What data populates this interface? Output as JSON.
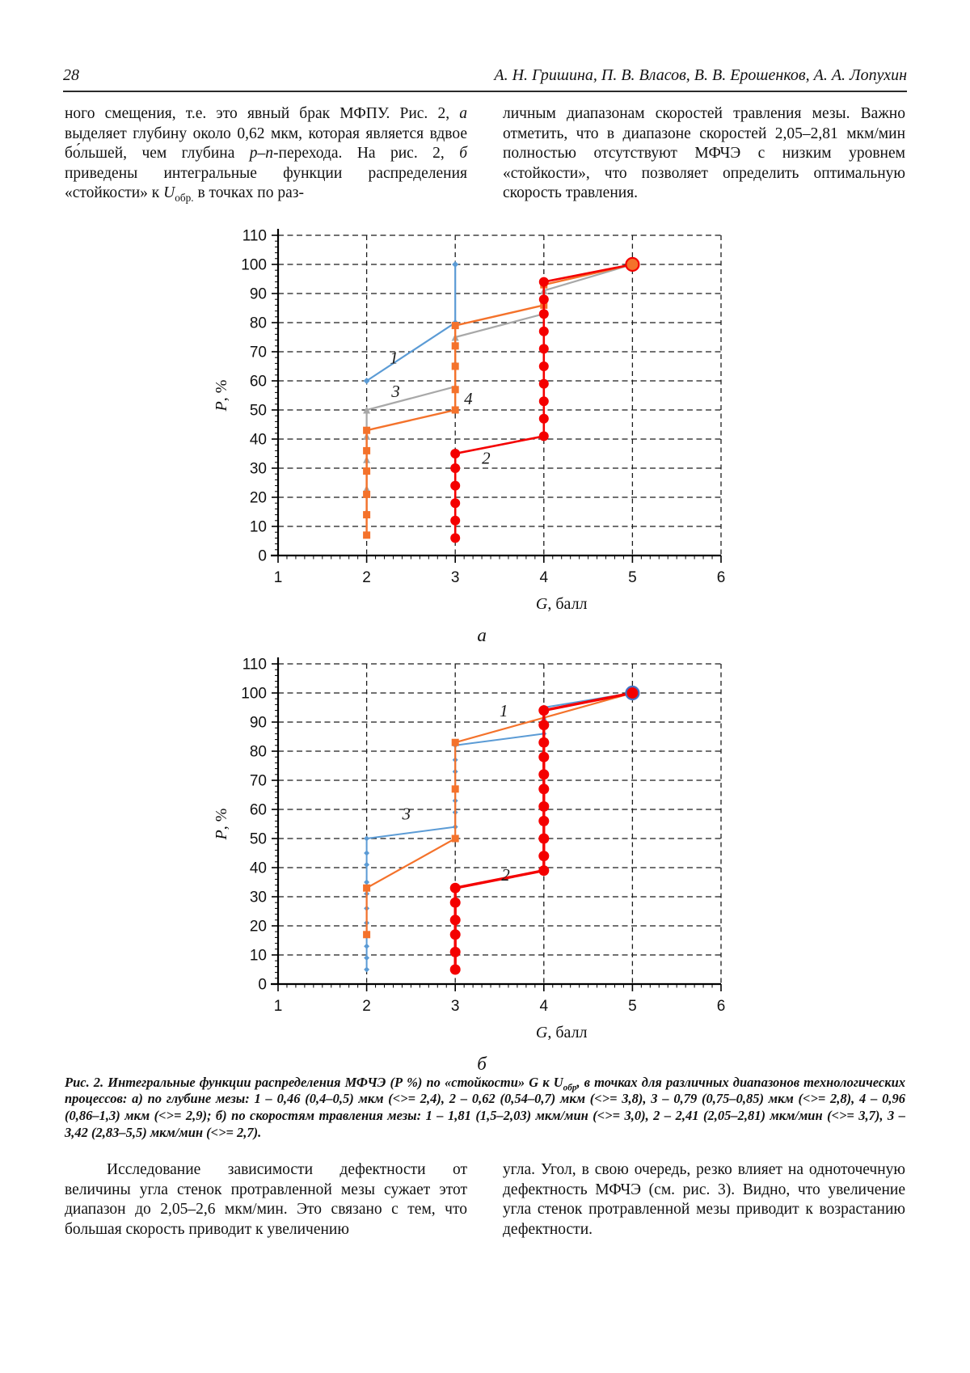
{
  "page": {
    "number": "28",
    "authors": "А. Н. Гришина, П. В. Власов, В. В. Ерошенков, А. А. Лопухин"
  },
  "paragraphs": {
    "top_left": [
      {
        "t": "ного смещения, т.е. это явный брак МФПУ. Рис. 2, "
      },
      {
        "t": "а",
        "s": "i"
      },
      {
        "t": " выделяет глубину около 0,62 мкм, которая является вдвое бо́льшей, чем глубина "
      },
      {
        "t": "p–n",
        "s": "i"
      },
      {
        "t": "-перехода. На рис. 2, "
      },
      {
        "t": "б",
        "s": "i"
      },
      {
        "t": " приведены интегральные функции распределения «стойкости» к "
      },
      {
        "t": "U",
        "s": "i"
      },
      {
        "t": "обр.",
        "s": "sub"
      },
      {
        "t": " в точках по раз-"
      }
    ],
    "top_right": [
      {
        "t": "личным диапазонам скоростей травления мезы. Важно отметить, что в диапазоне скоростей 2,05–2,81 мкм/мин полностью отсутствуют МФЧЭ с низким уровнем «стойкости», что позволяет определить оптимальную скорость травления."
      }
    ],
    "bottom_left": [
      {
        "t": "Исследование зависимости дефектности от величины угла стенок протравленной мезы сужает этот диапазон до 2,05–2,6 мкм/мин. Это связано с тем, что большая скорость приводит к увеличению"
      }
    ],
    "bottom_right": [
      {
        "t": "угла. Угол, в свою очередь, резко влияет на одноточечную дефектность МФЧЭ (см. рис. 3). Видно, что увеличение угла стенок протравленной мезы приводит к возрастанию дефектности."
      }
    ]
  },
  "caption": [
    {
      "t": "Рис. 2. Интегральные функции распределения МФЧЭ (Р %) по «стойкости» G к U"
    },
    {
      "t": "обр",
      "s": "sub"
    },
    {
      "t": ", в точках для различных диапазонов технологических процессов: а) по глубине мезы: 1 – 0,46 (0,4–0,5) мкм (<>= 2,4), 2 – 0,62 (0,54–0,7) мкм (<>= 3,8), 3 – 0,79 (0,75–0,85) мкм (<>= 2,8), 4 – 0,96 (0,86–1,3) мкм (<>= 2,9); б) по скоростям травления мезы: 1 – 1,81 (1,5–2,03) мкм/мин (<>= 3,0), 2 – 2,41 (2,05–2,81) мкм/мин (<>= 3,7), 3 – 3,42 (2,83–5,5) мкм/мин (<>= 2,7)."
    }
  ],
  "chart_data": [
    {
      "type": "line",
      "panel_label": "а",
      "xlabel": "G, балл",
      "ylabel": "P, %",
      "xlim": [
        1,
        6
      ],
      "ylim": [
        0,
        110
      ],
      "xticks": [
        1,
        2,
        3,
        4,
        5,
        6
      ],
      "ytick_step": 10,
      "grid": "dashed",
      "series": [
        {
          "name": "1",
          "color": "#5B9BD5",
          "marker": "diamond",
          "marker_size": 8,
          "line_width": 2.2,
          "label_at": [
            2.26,
            66
          ],
          "points": [
            [
              2,
              60
            ],
            [
              3,
              80
            ],
            [
              3,
              100
            ]
          ]
        },
        {
          "name": "3",
          "color": "#A8A8A8",
          "marker": "triangle",
          "marker_size": 9,
          "line_width": 2.2,
          "label_at": [
            2.28,
            54.5
          ],
          "points": [
            [
              2,
              15
            ],
            [
              2,
              23
            ],
            [
              2,
              33
            ],
            [
              2,
              41
            ],
            [
              2,
              50
            ],
            [
              3,
              58
            ],
            [
              3,
              66
            ],
            [
              3,
              75
            ],
            [
              4,
              83
            ],
            [
              4,
              91
            ],
            [
              5,
              100
            ]
          ]
        },
        {
          "name": "4",
          "color": "#F4722B",
          "marker": "square",
          "marker_size": 9,
          "line_width": 2.4,
          "label_at": [
            3.1,
            52
          ],
          "points": [
            [
              2,
              7
            ],
            [
              2,
              14
            ],
            [
              2,
              21
            ],
            [
              2,
              29
            ],
            [
              2,
              36
            ],
            [
              2,
              43
            ],
            [
              3,
              50
            ],
            [
              3,
              57
            ],
            [
              3,
              65
            ],
            [
              3,
              72
            ],
            [
              3,
              79
            ],
            [
              4,
              86
            ],
            [
              4,
              93
            ],
            [
              5,
              100
            ]
          ]
        },
        {
          "name": "2",
          "color": "#F40000",
          "marker": "circle",
          "marker_size": 12,
          "line_width": 2.6,
          "label_at": [
            3.3,
            31.5
          ],
          "points": [
            [
              3,
              6
            ],
            [
              3,
              12
            ],
            [
              3,
              18
            ],
            [
              3,
              24
            ],
            [
              3,
              30
            ],
            [
              3,
              35
            ],
            [
              4,
              41
            ],
            [
              4,
              47
            ],
            [
              4,
              53
            ],
            [
              4,
              59
            ],
            [
              4,
              65
            ],
            [
              4,
              71
            ],
            [
              4,
              77
            ],
            [
              4,
              83
            ],
            [
              4,
              88
            ],
            [
              4,
              94
            ],
            [
              5,
              100
            ]
          ]
        }
      ],
      "endpoint": {
        "x": 5,
        "y": 100,
        "r": 8,
        "fill": "#F4722B",
        "stroke": "#F40000"
      }
    },
    {
      "type": "line",
      "panel_label": "б",
      "xlabel": "G, балл",
      "ylabel": "P, %",
      "xlim": [
        1,
        6
      ],
      "ylim": [
        0,
        110
      ],
      "xticks": [
        1,
        2,
        3,
        4,
        5,
        6
      ],
      "ytick_step": 10,
      "grid": "dashed",
      "series": [
        {
          "name": "3",
          "color": "#5B9BD5",
          "marker": "diamond",
          "marker_size": 7,
          "line_width": 2,
          "label_at": [
            2.4,
            56.5
          ],
          "points": [
            [
              2,
              5
            ],
            [
              2,
              9
            ],
            [
              2,
              13
            ],
            [
              2,
              17
            ],
            [
              2,
              21
            ],
            [
              2,
              26
            ],
            [
              2,
              31
            ],
            [
              2,
              35
            ],
            [
              2,
              41
            ],
            [
              2,
              45
            ],
            [
              2,
              50
            ],
            [
              3,
              54
            ],
            [
              3,
              59
            ],
            [
              3,
              63
            ],
            [
              3,
              67
            ],
            [
              3,
              73
            ],
            [
              3,
              77
            ],
            [
              3,
              82
            ],
            [
              4,
              86
            ],
            [
              4,
              91
            ],
            [
              4,
              95
            ],
            [
              5,
              100
            ]
          ]
        },
        {
          "name": "1",
          "color": "#F4722B",
          "marker": "square",
          "marker_size": 9,
          "line_width": 2.2,
          "label_at": [
            3.5,
            92
          ],
          "points": [
            [
              2,
              17
            ],
            [
              2,
              33
            ],
            [
              3,
              50
            ],
            [
              3,
              67
            ],
            [
              3,
              83
            ],
            [
              5,
              100
            ]
          ]
        },
        {
          "name": "2",
          "color": "#F40000",
          "marker": "circle",
          "marker_size": 13,
          "line_width": 3.4,
          "label_at": [
            3.52,
            35.5
          ],
          "points": [
            [
              3,
              5
            ],
            [
              3,
              11
            ],
            [
              3,
              17
            ],
            [
              3,
              22
            ],
            [
              3,
              28
            ],
            [
              3,
              33
            ],
            [
              4,
              39
            ],
            [
              4,
              44
            ],
            [
              4,
              50
            ],
            [
              4,
              56
            ],
            [
              4,
              61
            ],
            [
              4,
              67
            ],
            [
              4,
              72
            ],
            [
              4,
              78
            ],
            [
              4,
              83
            ],
            [
              4,
              89
            ],
            [
              4,
              94
            ],
            [
              5,
              100
            ]
          ]
        }
      ],
      "endpoint": {
        "x": 5,
        "y": 100,
        "r": 8,
        "fill": "#F40000",
        "stroke": "#4472C4"
      }
    }
  ]
}
